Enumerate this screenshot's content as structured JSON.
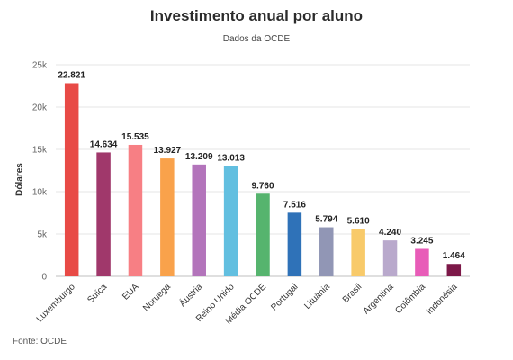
{
  "chart_data": {
    "type": "bar",
    "title": "Investimento anual por aluno",
    "subtitle": "Dados da OCDE",
    "ylabel": "Dólares",
    "xlabel": "",
    "source": "Fonte: OCDE",
    "ylim": [
      0,
      25000
    ],
    "yticks": [
      0,
      5000,
      10000,
      15000,
      20000,
      25000
    ],
    "ytick_labels": [
      "0",
      "5k",
      "10k",
      "15k",
      "20k",
      "25k"
    ],
    "grid": true,
    "legend": "none",
    "categories": [
      "Luxemburgo",
      "Suíça",
      "EUA",
      "Noruega",
      "Áustria",
      "Reino Unido",
      "Média OCDE",
      "Portugal",
      "Lituânia",
      "Brasil",
      "Argentina",
      "Colômbia",
      "Indonésia"
    ],
    "values": [
      22821,
      14634,
      15535,
      13927,
      13209,
      13013,
      9760,
      7516,
      5794,
      5610,
      4240,
      3245,
      1464
    ],
    "value_labels": [
      "22.821",
      "14.634",
      "15.535",
      "13.927",
      "13.209",
      "13.013",
      "9.760",
      "7.516",
      "5.794",
      "5.610",
      "4.240",
      "3.245",
      "1.464"
    ],
    "colors": [
      "#e84a46",
      "#a0386b",
      "#f77f84",
      "#f9a24b",
      "#b374bb",
      "#62bfe0",
      "#56b46e",
      "#2f72b8",
      "#9196b5",
      "#f8ca6a",
      "#b9a9cc",
      "#e85cb8",
      "#7c1848"
    ]
  }
}
